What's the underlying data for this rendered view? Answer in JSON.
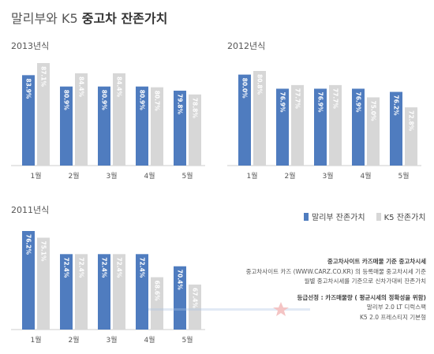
{
  "header": {
    "title_brand": "말리부와 K5",
    "title_main": "중고차 잔존가치"
  },
  "colors": {
    "malibu": "#4f7cbf",
    "k5": "#d7d7d7",
    "axis": "#cccccc"
  },
  "legend": {
    "malibu_label": "말리부 잔존가치",
    "k5_label": "K5 잔존가치"
  },
  "notes": {
    "source_head": "중고차사이트 카즈매물 기준 중고차시세",
    "source_line1": "중고차사이트 카즈 (WWW.CARZ.CO.KR) 의 등록매물 중고차시세 기준",
    "source_line2": "월별 중고차시세를 기준으로 신차가대비 잔존가치",
    "grade_head": "등급선정 : 카즈매물량 ( 평균시세의 정확성을 위함)",
    "grade_line1": "말리부 2.0 LT 디럭스팩",
    "grade_line2": "K5 2.0 프레스티지 기본형"
  },
  "chart_data": [
    {
      "type": "bar",
      "title": "2013년식",
      "categories": [
        "1월",
        "2월",
        "3월",
        "4월",
        "5월"
      ],
      "series": [
        {
          "name": "말리부 잔존가치",
          "values": [
            83.9,
            80.9,
            80.9,
            80.9,
            79.8
          ],
          "labels": [
            "83.9%",
            "80.9%",
            "80.9%",
            "80.9%",
            "79.8%"
          ]
        },
        {
          "name": "K5 잔존가치",
          "values": [
            87.1,
            84.4,
            84.4,
            80.7,
            78.8
          ],
          "labels": [
            "87.1%",
            "84.4%",
            "84.4%",
            "80.7%",
            "78.8%"
          ]
        }
      ]
    },
    {
      "type": "bar",
      "title": "2012년식",
      "categories": [
        "1월",
        "2월",
        "3월",
        "4월",
        "5월"
      ],
      "series": [
        {
          "name": "말리부 잔존가치",
          "values": [
            80.0,
            76.9,
            76.9,
            76.9,
            76.2
          ],
          "labels": [
            "80.0%",
            "76.9%",
            "76.9%",
            "76.9%",
            "76.2%"
          ]
        },
        {
          "name": "K5 잔존가치",
          "values": [
            80.8,
            77.7,
            77.7,
            75.0,
            72.8
          ],
          "labels": [
            "80.8%",
            "77.7%",
            "77.7%",
            "75.0%",
            "72.8%"
          ]
        }
      ]
    },
    {
      "type": "bar",
      "title": "2011년식",
      "categories": [
        "1월",
        "2월",
        "3월",
        "4월",
        "5월"
      ],
      "series": [
        {
          "name": "말리부 잔존가치",
          "values": [
            76.2,
            72.4,
            72.4,
            72.4,
            70.4
          ],
          "labels": [
            "76.2%",
            "72.4%",
            "72.4%",
            "72.4%",
            "70.4%"
          ]
        },
        {
          "name": "K5 잔존가치",
          "values": [
            75.1,
            72.4,
            72.4,
            68.6,
            67.4
          ],
          "labels": [
            "75.1%",
            "72.4%",
            "72.4%",
            "68.6%",
            "67.4%"
          ]
        }
      ]
    }
  ]
}
